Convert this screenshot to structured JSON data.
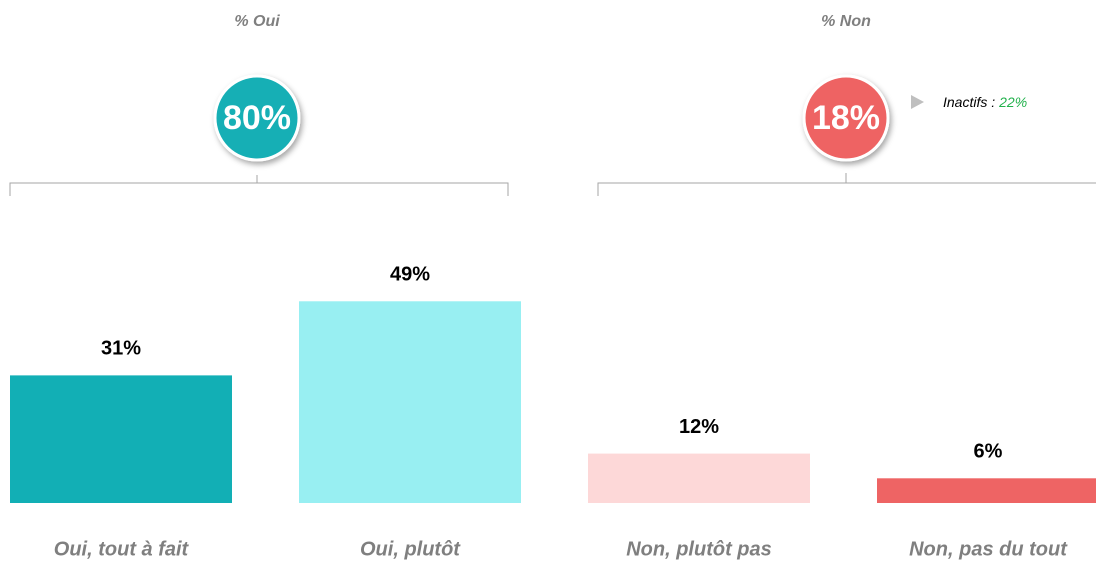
{
  "chart_data": {
    "type": "bar",
    "categories": [
      "Oui, tout à fait",
      "Oui, plutôt",
      "Non, plutôt pas",
      "Non, pas du tout"
    ],
    "values": [
      31,
      49,
      12,
      6
    ],
    "value_labels": [
      "31%",
      "49%",
      "12%",
      "6%"
    ],
    "colors": [
      "#12afb5",
      "#98eff2",
      "#fdd8d8",
      "#ee6464"
    ],
    "ylim": [
      0,
      60
    ],
    "groups": [
      {
        "label": "% Oui",
        "value": 80,
        "value_label": "80%",
        "color": "#12afb5"
      },
      {
        "label": "% Non",
        "value": 18,
        "value_label": "18%",
        "color": "#ee6464",
        "note": {
          "label": "Inactifs :",
          "value": 22,
          "value_label": "22%",
          "color": "#22b14c"
        }
      }
    ]
  }
}
